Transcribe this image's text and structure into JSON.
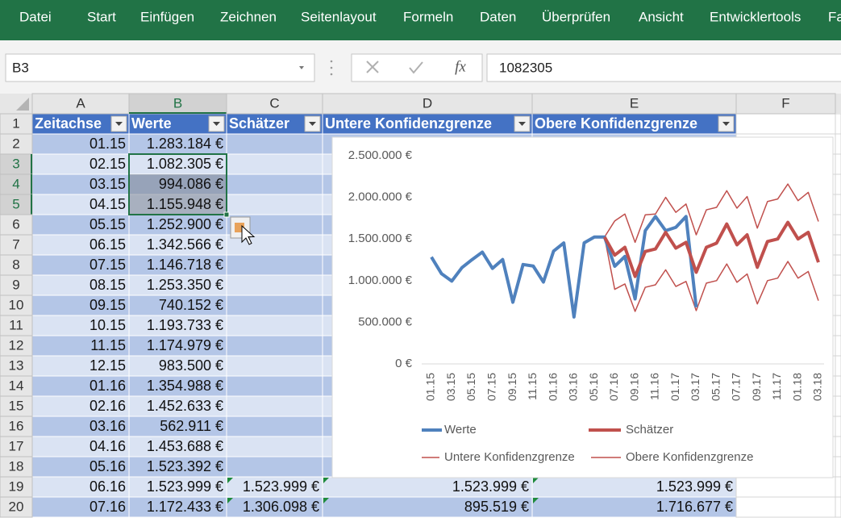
{
  "ribbon": {
    "tabs": [
      "Datei",
      "Start",
      "Einfügen",
      "Zeichnen",
      "Seitenlayout",
      "Formeln",
      "Daten",
      "Überprüfen",
      "Ansicht",
      "Entwicklertools",
      "Fa"
    ]
  },
  "formula_bar": {
    "name_box": "B3",
    "function_icon": "fx",
    "formula": "1082305"
  },
  "sheet": {
    "columns": [
      "A",
      "B",
      "C",
      "D",
      "E",
      "F"
    ],
    "row_numbers": [
      1,
      2,
      3,
      4,
      5,
      6,
      7,
      8,
      9,
      10,
      11,
      12,
      13,
      14,
      15,
      16,
      17,
      18,
      19,
      20
    ],
    "header": [
      "Zeitachse",
      "Werte",
      "Schätzer",
      "Untere Konfidenzgrenze",
      "Obere Konfidenzgrenze"
    ],
    "rows": [
      [
        "01.15",
        "1.283.184 €"
      ],
      [
        "02.15",
        "1.082.305 €"
      ],
      [
        "03.15",
        "994.086 €"
      ],
      [
        "04.15",
        "1.155.948 €"
      ],
      [
        "05.15",
        "1.252.900 €"
      ],
      [
        "06.15",
        "1.342.566 €"
      ],
      [
        "07.15",
        "1.146.718 €"
      ],
      [
        "08.15",
        "1.253.350 €"
      ],
      [
        "09.15",
        "740.152 €"
      ],
      [
        "10.15",
        "1.193.733 €"
      ],
      [
        "11.15",
        "1.174.979 €"
      ],
      [
        "12.15",
        "983.500 €"
      ],
      [
        "01.16",
        "1.354.988 €"
      ],
      [
        "02.16",
        "1.452.633 €"
      ],
      [
        "03.16",
        "562.911 €"
      ],
      [
        "04.16",
        "1.453.688 €"
      ],
      [
        "05.16",
        "1.523.392 €"
      ],
      [
        "06.16",
        "1.523.999 €",
        "1.523.999 €",
        "1.523.999 €",
        "1.523.999 €"
      ],
      [
        "07.16",
        "1.172.433 €",
        "1.306.098 €",
        "895.519 €",
        "1.716.677 €"
      ]
    ]
  },
  "chart_data": {
    "type": "line",
    "categories": [
      "01.15",
      null,
      "03.15",
      null,
      "05.15",
      null,
      "07.15",
      null,
      "09.15",
      null,
      "11.15",
      null,
      "01.16",
      null,
      "03.16",
      null,
      "05.16",
      null,
      "07.16",
      null,
      "09.16",
      null,
      "11.16",
      null,
      "01.17",
      null,
      "03.17",
      null,
      "05.17",
      null,
      "07.17",
      null,
      "09.17",
      null,
      "11.17",
      null,
      "01.18",
      null,
      "03.18"
    ],
    "ylim": [
      0,
      2500000
    ],
    "yticks": [
      {
        "value": 0,
        "label": "0 €"
      },
      {
        "value": 500000,
        "label": "500.000 €"
      },
      {
        "value": 1000000,
        "label": "1.000.000 €"
      },
      {
        "value": 1500000,
        "label": "1.500.000 €"
      },
      {
        "value": 2000000,
        "label": "2.000.000 €"
      },
      {
        "value": 2500000,
        "label": "2.500.000 €"
      }
    ],
    "grid": false,
    "legend": "bottom",
    "series": [
      {
        "name": "Werte",
        "color": "#4f81bd",
        "line_width": 4,
        "values": [
          1283184,
          1082305,
          994086,
          1155948,
          1252900,
          1342566,
          1146718,
          1253350,
          740152,
          1193733,
          1174979,
          983500,
          1354988,
          1452633,
          562911,
          1453688,
          1523392,
          1523999,
          1172433,
          1290000,
          780000,
          1600000,
          1770000,
          1600000,
          1640000,
          1770000,
          680000,
          null,
          null,
          null,
          null,
          null,
          null,
          null,
          null,
          null,
          null,
          null,
          null
        ]
      },
      {
        "name": "Schätzer",
        "color": "#c0504d",
        "line_width": 4,
        "values": [
          null,
          null,
          null,
          null,
          null,
          null,
          null,
          null,
          null,
          null,
          null,
          null,
          null,
          null,
          null,
          null,
          null,
          1523999,
          1306098,
          1400000,
          1050000,
          1350000,
          1380000,
          1580000,
          1390000,
          1460000,
          1100000,
          1400000,
          1450000,
          1680000,
          1430000,
          1550000,
          1160000,
          1470000,
          1500000,
          1700000,
          1500000,
          1580000,
          1220000
        ]
      },
      {
        "name": "Untere Konfidenzgrenze",
        "color": "#c0504d",
        "line_width": 1.5,
        "values": [
          null,
          null,
          null,
          null,
          null,
          null,
          null,
          null,
          null,
          null,
          null,
          null,
          null,
          null,
          null,
          null,
          null,
          1523999,
          895519,
          960000,
          630000,
          920000,
          950000,
          1130000,
          930000,
          990000,
          640000,
          970000,
          1000000,
          1200000,
          980000,
          1080000,
          720000,
          1000000,
          1030000,
          1230000,
          1030000,
          1110000,
          760000
        ]
      },
      {
        "name": "Obere Konfidenzgrenze",
        "color": "#c0504d",
        "line_width": 1.5,
        "values": [
          null,
          null,
          null,
          null,
          null,
          null,
          null,
          null,
          null,
          null,
          null,
          null,
          null,
          null,
          null,
          null,
          null,
          1523999,
          1716677,
          1800000,
          1460000,
          1790000,
          1800000,
          2000000,
          1820000,
          1920000,
          1550000,
          1850000,
          1880000,
          2080000,
          1870000,
          2010000,
          1630000,
          1950000,
          1980000,
          2160000,
          1960000,
          2060000,
          1710000
        ]
      }
    ]
  }
}
